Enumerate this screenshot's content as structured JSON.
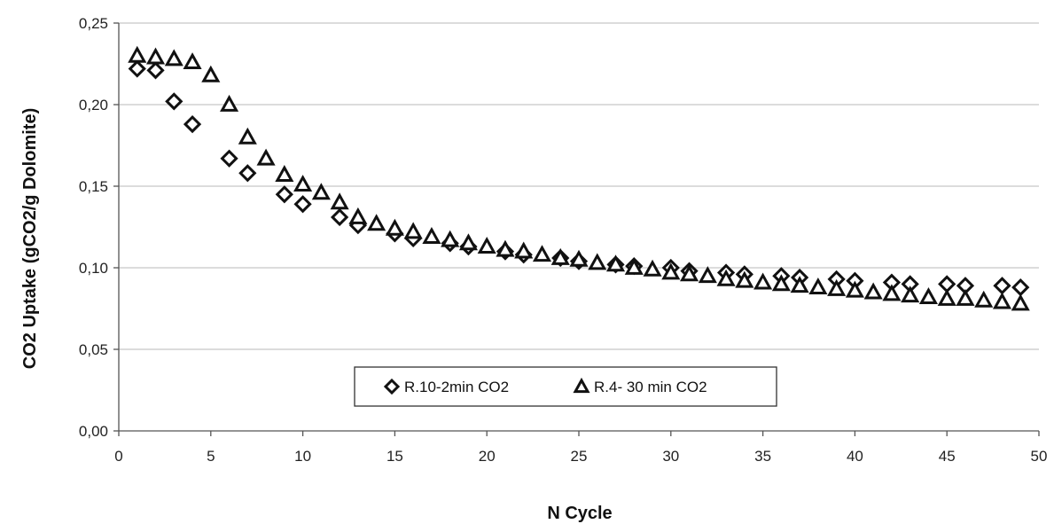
{
  "chart_data": {
    "type": "scatter",
    "title": "",
    "xlabel": "N Cycle",
    "ylabel": "CO2 Uptake (gCO2/g Dolomite)",
    "xlim": [
      0,
      50
    ],
    "ylim": [
      0,
      0.25
    ],
    "x_ticks": [
      "0",
      "5",
      "10",
      "15",
      "20",
      "25",
      "30",
      "35",
      "40",
      "45",
      "50"
    ],
    "y_ticks": [
      "0,00",
      "0,05",
      "0,10",
      "0,15",
      "0,20",
      "0,25"
    ],
    "grid": "horizontal",
    "legend_position": "bottom-center",
    "series": [
      {
        "name": "R.10-2min CO2",
        "marker": "diamond",
        "color": "#111111",
        "points": [
          [
            1,
            0.222
          ],
          [
            2,
            0.221
          ],
          [
            3,
            0.202
          ],
          [
            4,
            0.188
          ],
          [
            6,
            0.167
          ],
          [
            7,
            0.158
          ],
          [
            9,
            0.145
          ],
          [
            10,
            0.139
          ],
          [
            12,
            0.131
          ],
          [
            13,
            0.126
          ],
          [
            15,
            0.121
          ],
          [
            16,
            0.118
          ],
          [
            18,
            0.115
          ],
          [
            19,
            0.113
          ],
          [
            21,
            0.11
          ],
          [
            22,
            0.108
          ],
          [
            24,
            0.106
          ],
          [
            25,
            0.104
          ],
          [
            27,
            0.102
          ],
          [
            28,
            0.101
          ],
          [
            30,
            0.1
          ],
          [
            31,
            0.098
          ],
          [
            33,
            0.097
          ],
          [
            34,
            0.096
          ],
          [
            36,
            0.095
          ],
          [
            37,
            0.094
          ],
          [
            39,
            0.093
          ],
          [
            40,
            0.092
          ],
          [
            42,
            0.091
          ],
          [
            43,
            0.09
          ],
          [
            45,
            0.09
          ],
          [
            46,
            0.089
          ],
          [
            48,
            0.089
          ],
          [
            49,
            0.088
          ]
        ]
      },
      {
        "name": "R.4- 30 min CO2",
        "marker": "triangle",
        "color": "#111111",
        "points": [
          [
            1,
            0.23
          ],
          [
            2,
            0.229
          ],
          [
            3,
            0.228
          ],
          [
            4,
            0.226
          ],
          [
            5,
            0.218
          ],
          [
            6,
            0.2
          ],
          [
            7,
            0.18
          ],
          [
            8,
            0.167
          ],
          [
            9,
            0.157
          ],
          [
            10,
            0.151
          ],
          [
            11,
            0.146
          ],
          [
            12,
            0.14
          ],
          [
            13,
            0.131
          ],
          [
            14,
            0.127
          ],
          [
            15,
            0.124
          ],
          [
            16,
            0.122
          ],
          [
            17,
            0.119
          ],
          [
            18,
            0.117
          ],
          [
            19,
            0.115
          ],
          [
            20,
            0.113
          ],
          [
            21,
            0.111
          ],
          [
            22,
            0.11
          ],
          [
            23,
            0.108
          ],
          [
            24,
            0.106
          ],
          [
            25,
            0.105
          ],
          [
            26,
            0.103
          ],
          [
            27,
            0.102
          ],
          [
            28,
            0.1
          ],
          [
            29,
            0.099
          ],
          [
            30,
            0.097
          ],
          [
            31,
            0.096
          ],
          [
            32,
            0.095
          ],
          [
            33,
            0.093
          ],
          [
            34,
            0.092
          ],
          [
            35,
            0.091
          ],
          [
            36,
            0.09
          ],
          [
            37,
            0.089
          ],
          [
            38,
            0.088
          ],
          [
            39,
            0.087
          ],
          [
            40,
            0.086
          ],
          [
            41,
            0.085
          ],
          [
            42,
            0.084
          ],
          [
            43,
            0.083
          ],
          [
            44,
            0.082
          ],
          [
            45,
            0.081
          ],
          [
            46,
            0.081
          ],
          [
            47,
            0.08
          ],
          [
            48,
            0.079
          ],
          [
            49,
            0.078
          ]
        ]
      }
    ]
  }
}
